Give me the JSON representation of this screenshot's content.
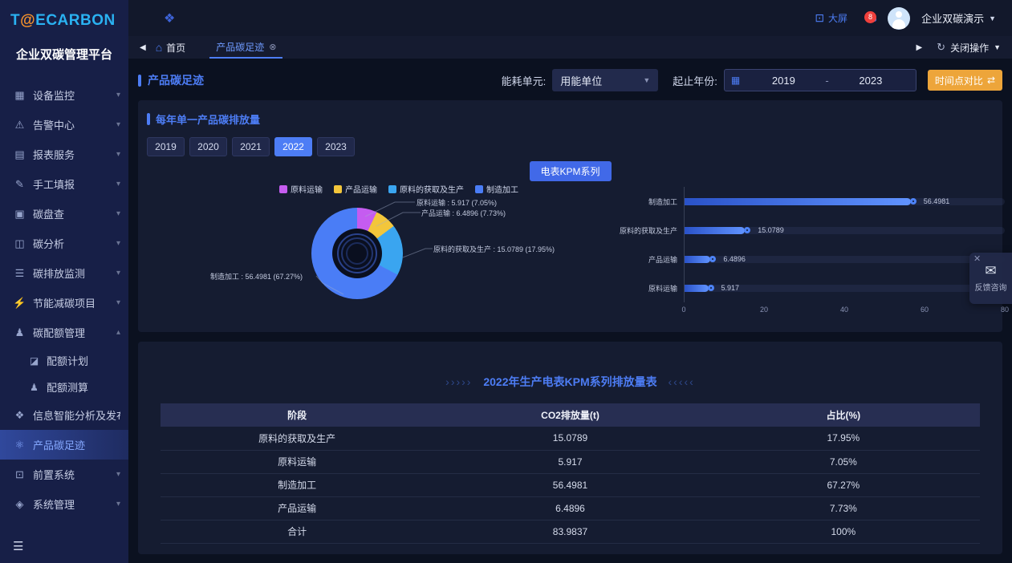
{
  "brand": {
    "logo_part1": "T",
    "logo_at": "@",
    "logo_part2": "ECARBON",
    "platform_title": "企业双碳管理平台"
  },
  "sidebar": {
    "items": [
      {
        "label": "设备监控",
        "icon": "device-monitor-icon",
        "chevron": "down"
      },
      {
        "label": "告警中心",
        "icon": "alarm-bell-icon",
        "chevron": "down"
      },
      {
        "label": "报表服务",
        "icon": "report-icon",
        "chevron": "down"
      },
      {
        "label": "手工填报",
        "icon": "manual-entry-icon",
        "chevron": "down"
      },
      {
        "label": "碳盘查",
        "icon": "carbon-inventory-icon",
        "chevron": "down"
      },
      {
        "label": "碳分析",
        "icon": "carbon-analysis-icon",
        "chevron": "down"
      },
      {
        "label": "碳排放监测",
        "icon": "emission-monitor-icon",
        "chevron": "down"
      },
      {
        "label": "节能减碳项目",
        "icon": "energy-saving-icon",
        "chevron": "down"
      },
      {
        "label": "碳配额管理",
        "icon": "quota-manage-icon",
        "chevron": "up",
        "children": [
          {
            "label": "配额计划",
            "icon": "quota-plan-icon"
          },
          {
            "label": "配额测算",
            "icon": "quota-calc-icon"
          }
        ]
      },
      {
        "label": "信息智能分析及发布",
        "icon": "info-analysis-icon"
      },
      {
        "label": "产品碳足迹",
        "icon": "product-footprint-icon",
        "active": true
      },
      {
        "label": "前置系统",
        "icon": "front-system-icon",
        "chevron": "down"
      },
      {
        "label": "系统管理",
        "icon": "system-manage-icon",
        "chevron": "down"
      }
    ]
  },
  "header": {
    "big_screen_label": "大屏",
    "notification_count": "8",
    "tenant_label": "企业双碳演示"
  },
  "tabbar": {
    "home_label": "首页",
    "active_tab_label": "产品碳足迹",
    "close_ops_label": "关闭操作"
  },
  "filterbar": {
    "page_title": "产品碳足迹",
    "energy_unit_label": "能耗单元:",
    "energy_unit_value": "用能单位",
    "year_range_label": "起止年份:",
    "year_start": "2019",
    "year_separator": "-",
    "year_end": "2023",
    "compare_button_label": "时间点对比"
  },
  "chart_section": {
    "title": "每年单一产品碳排放量",
    "years": [
      "2019",
      "2020",
      "2021",
      "2022",
      "2023"
    ],
    "active_year": "2022",
    "series_button_label": "电表KPM系列"
  },
  "chart_data": [
    {
      "type": "pie",
      "donut": true,
      "legend_position": "top",
      "labels": [
        "原料运输",
        "产品运输",
        "原料的获取及生产",
        "制造加工"
      ],
      "values": [
        5.917,
        6.4896,
        15.0789,
        56.4981
      ],
      "percents": [
        7.05,
        7.73,
        17.95,
        67.27
      ],
      "colors": [
        "#c55cf0",
        "#f3c63b",
        "#3aa5f0",
        "#4a7df6"
      ]
    },
    {
      "type": "bar",
      "orientation": "horizontal",
      "categories": [
        "制造加工",
        "原料的获取及生产",
        "产品运输",
        "原料运输"
      ],
      "values": [
        56.4981,
        15.0789,
        6.4896,
        5.917
      ],
      "xlim": [
        0,
        80
      ],
      "xticks": [
        0,
        20,
        40,
        60,
        80
      ],
      "bar_color": "#4d83f7",
      "grid": false
    }
  ],
  "table_section": {
    "decor_left": "›››››",
    "title": "2022年生产电表KPM系列排放量表",
    "decor_right": "‹‹‹‹‹",
    "columns": [
      "阶段",
      "CO2排放量(t)",
      "占比(%)"
    ],
    "rows": [
      [
        "原料的获取及生产",
        "15.0789",
        "17.95%"
      ],
      [
        "原料运输",
        "5.917",
        "7.05%"
      ],
      [
        "制造加工",
        "56.4981",
        "67.27%"
      ],
      [
        "产品运输",
        "6.4896",
        "7.73%"
      ],
      [
        "合计",
        "83.9837",
        "100%"
      ]
    ]
  },
  "feedback": {
    "label": "反馈咨询"
  }
}
